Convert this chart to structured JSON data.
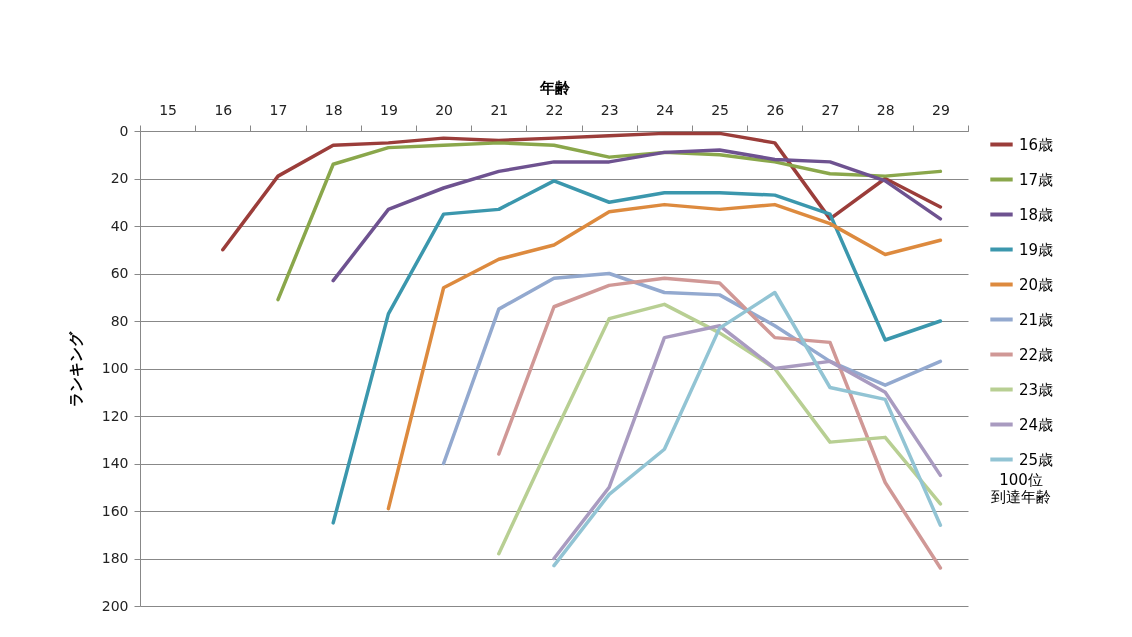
{
  "chart_data": {
    "type": "line",
    "xlabel": "年齢",
    "ylabel": "ランキング",
    "legend_title": "100位到達年齢",
    "categories": [
      "15",
      "16",
      "17",
      "18",
      "19",
      "20",
      "21",
      "22",
      "23",
      "24",
      "25",
      "26",
      "27",
      "28",
      "29"
    ],
    "ylim": [
      200,
      0
    ],
    "yticks": [
      0,
      20,
      40,
      60,
      80,
      100,
      120,
      140,
      160,
      180,
      200
    ],
    "grid": "y",
    "legend": "right",
    "marker": "none",
    "line_style": "solid",
    "series": [
      {
        "name": "16歳",
        "color": "#9b3d3a",
        "values": [
          null,
          50,
          19,
          6,
          5,
          3,
          4,
          3,
          2,
          1,
          1,
          5,
          37,
          20,
          32
        ]
      },
      {
        "name": "17歳",
        "color": "#8aa74b",
        "values": [
          null,
          null,
          71,
          14,
          7,
          6,
          5,
          6,
          11,
          9,
          10,
          13,
          18,
          19,
          17
        ]
      },
      {
        "name": "18歳",
        "color": "#6e5290",
        "values": [
          null,
          null,
          null,
          63,
          33,
          24,
          17,
          13,
          13,
          9,
          8,
          12,
          13,
          21,
          37
        ]
      },
      {
        "name": "19歳",
        "color": "#3b97ad",
        "values": [
          null,
          null,
          null,
          165,
          77,
          35,
          33,
          21,
          30,
          26,
          26,
          27,
          35,
          88,
          80
        ]
      },
      {
        "name": "20歳",
        "color": "#dd8a3e",
        "values": [
          null,
          null,
          null,
          null,
          159,
          66,
          54,
          48,
          34,
          31,
          33,
          31,
          39,
          52,
          46
        ]
      },
      {
        "name": "21歳",
        "color": "#93a9cf",
        "values": [
          null,
          null,
          null,
          null,
          null,
          140,
          75,
          62,
          60,
          68,
          69,
          82,
          97,
          107,
          97
        ]
      },
      {
        "name": "22歳",
        "color": "#d09896",
        "values": [
          null,
          null,
          null,
          null,
          null,
          null,
          136,
          74,
          65,
          62,
          64,
          87,
          89,
          148,
          184
        ]
      },
      {
        "name": "23歳",
        "color": "#b8cf93",
        "values": [
          null,
          null,
          null,
          null,
          null,
          null,
          178,
          128,
          79,
          73,
          85,
          100,
          131,
          129,
          157
        ]
      },
      {
        "name": "24歳",
        "color": "#a99bc0",
        "values": [
          null,
          null,
          null,
          null,
          null,
          null,
          null,
          180,
          150,
          87,
          82,
          100,
          97,
          110,
          145
        ]
      },
      {
        "name": "25歳",
        "color": "#92c4d4",
        "values": [
          null,
          null,
          null,
          null,
          null,
          null,
          null,
          183,
          153,
          134,
          83,
          68,
          108,
          113,
          166
        ]
      }
    ]
  }
}
